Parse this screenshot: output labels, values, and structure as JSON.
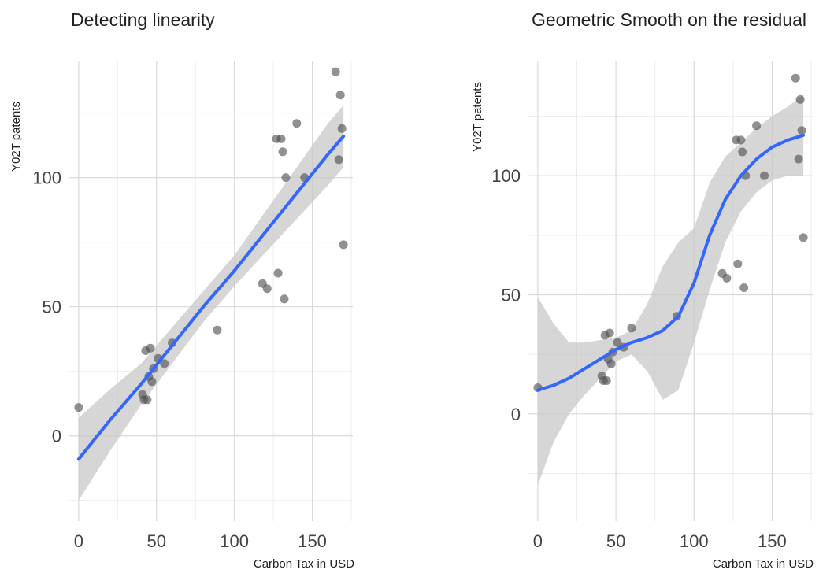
{
  "chart_data": [
    {
      "type": "scatter",
      "title": "Detecting linearity",
      "xlabel": "Carbon Tax in USD",
      "ylabel": "Y02T patents",
      "xlim": [
        -6,
        176
      ],
      "ylim": [
        -33,
        145
      ],
      "xticks": [
        0,
        50,
        100,
        150
      ],
      "yticks": [
        0,
        50,
        100
      ],
      "grid": true,
      "points": {
        "x": [
          0,
          41,
          42,
          43,
          44,
          45,
          46,
          47,
          48,
          51,
          55,
          60,
          89,
          118,
          121,
          127,
          128,
          130,
          131,
          132,
          133,
          140,
          145,
          165,
          167,
          168,
          169,
          170
        ],
        "y": [
          11,
          16,
          14,
          33,
          14,
          23,
          34,
          21,
          26,
          30,
          28,
          36,
          41,
          59,
          57,
          115,
          63,
          115,
          110,
          53,
          100,
          121,
          100,
          141,
          107,
          132,
          119,
          74
        ]
      },
      "fit": {
        "method": "linear",
        "x": [
          0,
          20,
          40,
          60,
          80,
          100,
          120,
          140,
          160,
          170
        ],
        "y": [
          -9,
          6,
          20,
          35,
          50,
          64,
          79,
          94,
          109,
          116
        ],
        "lo": [
          -25,
          -6,
          12,
          28,
          44,
          58,
          71,
          84,
          97,
          104
        ],
        "hi": [
          7,
          18,
          28,
          42,
          56,
          70,
          87,
          104,
          121,
          128
        ]
      }
    },
    {
      "type": "scatter",
      "title": "Geometric Smooth on the residual",
      "xlabel": "Carbon Tax in USD",
      "ylabel": "Y02T patents",
      "xlim": [
        -6,
        176
      ],
      "ylim": [
        -45,
        148
      ],
      "xticks": [
        0,
        50,
        100,
        150
      ],
      "yticks": [
        0,
        50,
        100
      ],
      "grid": true,
      "points": {
        "x": [
          0,
          41,
          42,
          43,
          44,
          45,
          46,
          47,
          48,
          51,
          55,
          60,
          89,
          118,
          121,
          127,
          128,
          130,
          131,
          132,
          133,
          140,
          145,
          165,
          167,
          168,
          169,
          170
        ],
        "y": [
          11,
          16,
          14,
          33,
          14,
          23,
          34,
          21,
          26,
          30,
          28,
          36,
          41,
          59,
          57,
          115,
          63,
          115,
          110,
          53,
          100,
          121,
          100,
          141,
          107,
          132,
          119,
          74
        ]
      },
      "fit": {
        "method": "loess",
        "x": [
          0,
          10,
          20,
          30,
          40,
          50,
          60,
          70,
          80,
          90,
          100,
          110,
          120,
          130,
          140,
          150,
          160,
          170
        ],
        "y": [
          10,
          12,
          15,
          19,
          23,
          27,
          30,
          32,
          35,
          41,
          55,
          75,
          90,
          100,
          107,
          112,
          115,
          117
        ],
        "lo": [
          -30,
          -12,
          0,
          8,
          15,
          22,
          25,
          18,
          6,
          10,
          30,
          52,
          72,
          85,
          93,
          98,
          100,
          100
        ],
        "hi": [
          49,
          38,
          30,
          30,
          31,
          32,
          35,
          46,
          62,
          72,
          78,
          97,
          108,
          114,
          120,
          125,
          129,
          134
        ]
      }
    }
  ]
}
